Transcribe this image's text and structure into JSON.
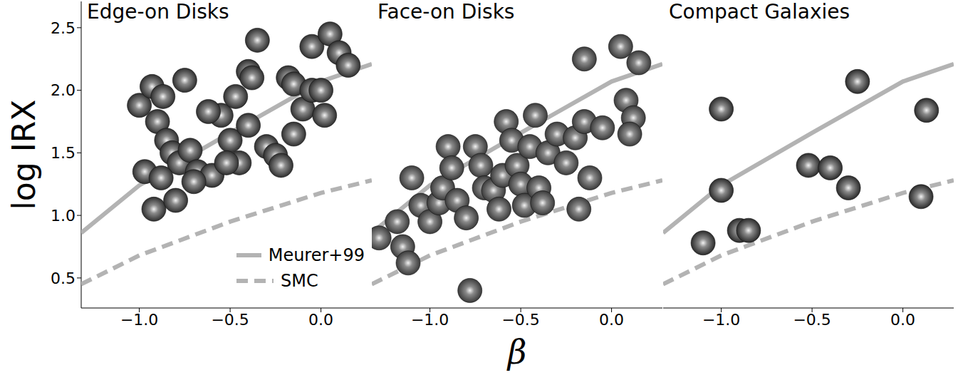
{
  "chart_data": [
    {
      "type": "scatter",
      "title": "Edge-on Disks",
      "ylabel": "log IRX",
      "legend": "lower right",
      "xlim": [
        -1.32,
        0.28
      ],
      "ylim": [
        0.26,
        2.71
      ],
      "xticks": [
        {
          "value": -1,
          "label": "−1.0"
        },
        {
          "value": -0.5,
          "label": "−0.5"
        },
        {
          "value": 0,
          "label": "0.0"
        }
      ],
      "yticks": [
        0.5,
        {
          "value": 1,
          "label": "1.0"
        },
        1.5,
        {
          "value": 2,
          "label": "2.0"
        },
        2.5
      ],
      "series": [
        {
          "name": "Meurer+99",
          "type": "line",
          "line_style": "solid",
          "marker": "none",
          "color": "#b3b3b3",
          "x": [
            -1.32,
            -1.0,
            -0.5,
            0.0,
            0.28
          ],
          "values": [
            0.86,
            1.24,
            1.66,
            2.07,
            2.21
          ]
        },
        {
          "name": "SMC",
          "type": "line",
          "line_style": "dashed",
          "marker": "none",
          "color": "#b3b3b3",
          "x": [
            -1.32,
            -1.0,
            -0.5,
            0.0,
            0.28
          ],
          "values": [
            0.45,
            0.68,
            0.95,
            1.18,
            1.28
          ]
        },
        {
          "type": "scatter",
          "marker": "circle",
          "color": "#2e2e2e",
          "x": [
            -1.0,
            -0.93,
            -0.87,
            -0.9,
            -0.85,
            -0.82,
            -0.78,
            -0.97,
            -0.92,
            -0.8,
            -0.75,
            -0.72,
            -0.68,
            -0.6,
            -0.55,
            -0.5,
            -0.47,
            -0.45,
            -0.4,
            -0.4,
            -0.35,
            -0.38,
            -0.3,
            -0.25,
            -0.22,
            -0.18,
            -0.15,
            -0.1,
            -0.15,
            -0.05,
            -0.05,
            0.05,
            0.1,
            0.15,
            0.02,
            -0.62,
            -0.52,
            -0.7,
            -0.88,
            0.0
          ],
          "values": [
            1.88,
            2.03,
            1.95,
            1.75,
            1.6,
            1.5,
            1.42,
            1.35,
            1.05,
            1.12,
            2.08,
            1.52,
            1.35,
            1.32,
            1.8,
            1.6,
            1.95,
            1.42,
            1.72,
            2.15,
            2.4,
            2.1,
            1.55,
            1.48,
            1.4,
            2.1,
            1.65,
            1.85,
            2.05,
            2.0,
            2.35,
            2.45,
            2.3,
            2.2,
            1.8,
            1.83,
            1.42,
            1.27,
            1.3,
            2.0
          ]
        }
      ]
    },
    {
      "type": "scatter",
      "title": "Face-on Disks",
      "xlabel": "β",
      "tick_labels": "x",
      "xlim": [
        -1.32,
        0.28
      ],
      "ylim": [
        0.26,
        2.71
      ],
      "xticks": [
        {
          "value": -1,
          "label": "−1.0"
        },
        {
          "value": -0.5,
          "label": "−0.5"
        },
        {
          "value": 0,
          "label": "0.0"
        }
      ],
      "series": [
        {
          "name": "Meurer+99",
          "type": "line",
          "line_style": "solid",
          "marker": "none",
          "color": "#b3b3b3",
          "x": [
            -1.32,
            -1.0,
            -0.5,
            0.0,
            0.28
          ],
          "values": [
            0.86,
            1.24,
            1.66,
            2.07,
            2.21
          ]
        },
        {
          "name": "SMC",
          "type": "line",
          "line_style": "dashed",
          "marker": "none",
          "color": "#b3b3b3",
          "x": [
            -1.32,
            -1.0,
            -0.5,
            0.0,
            0.28
          ],
          "values": [
            0.45,
            0.68,
            0.95,
            1.18,
            1.28
          ]
        },
        {
          "type": "scatter",
          "marker": "circle",
          "color": "#3a3a3a",
          "x": [
            -1.28,
            -1.18,
            -1.15,
            -1.1,
            -1.05,
            -1.12,
            -1.0,
            -0.95,
            -0.93,
            -0.9,
            -0.88,
            -0.85,
            -0.8,
            -0.78,
            -0.75,
            -0.72,
            -0.7,
            -0.65,
            -0.62,
            -0.6,
            -0.58,
            -0.55,
            -0.52,
            -0.5,
            -0.48,
            -0.45,
            -0.42,
            -0.4,
            -0.38,
            -0.35,
            -0.3,
            -0.25,
            -0.2,
            -0.15,
            -0.12,
            -0.18,
            -0.15,
            -0.05,
            0.05,
            0.15,
            0.08,
            0.12,
            0.1
          ],
          "values": [
            0.82,
            0.95,
            0.75,
            1.3,
            1.08,
            0.62,
            0.95,
            1.1,
            1.22,
            1.55,
            1.38,
            1.12,
            0.98,
            0.4,
            1.55,
            1.4,
            1.22,
            1.2,
            1.05,
            1.32,
            1.75,
            1.6,
            1.4,
            1.25,
            1.08,
            1.55,
            1.8,
            1.22,
            1.1,
            1.5,
            1.65,
            1.42,
            1.62,
            1.75,
            1.3,
            1.05,
            2.25,
            1.7,
            2.35,
            2.22,
            1.92,
            1.78,
            1.65
          ]
        }
      ]
    },
    {
      "type": "scatter",
      "title": "Compact Galaxies",
      "tick_labels": "x",
      "xlim": [
        -1.32,
        0.28
      ],
      "ylim": [
        0.26,
        2.71
      ],
      "xticks": [
        {
          "value": -1,
          "label": "−1.0"
        },
        {
          "value": -0.5,
          "label": "−0.5"
        },
        {
          "value": 0,
          "label": "0.0"
        }
      ],
      "series": [
        {
          "name": "Meurer+99",
          "type": "line",
          "line_style": "solid",
          "marker": "none",
          "color": "#b3b3b3",
          "x": [
            -1.32,
            -1.0,
            -0.5,
            0.0,
            0.28
          ],
          "values": [
            0.86,
            1.24,
            1.66,
            2.07,
            2.21
          ]
        },
        {
          "name": "SMC",
          "type": "line",
          "line_style": "dashed",
          "marker": "none",
          "color": "#b3b3b3",
          "x": [
            -1.32,
            -1.0,
            -0.5,
            0.0,
            0.28
          ],
          "values": [
            0.45,
            0.68,
            0.95,
            1.18,
            1.28
          ]
        },
        {
          "type": "scatter",
          "marker": "circle",
          "color": "#2a2a2a",
          "x": [
            -1.1,
            -1.0,
            -1.0,
            -0.9,
            -0.85,
            -0.52,
            -0.4,
            -0.3,
            -0.25,
            0.1,
            0.13
          ],
          "values": [
            0.78,
            1.85,
            1.2,
            0.88,
            0.88,
            1.4,
            1.38,
            1.22,
            2.07,
            1.15,
            1.84
          ]
        }
      ]
    }
  ]
}
